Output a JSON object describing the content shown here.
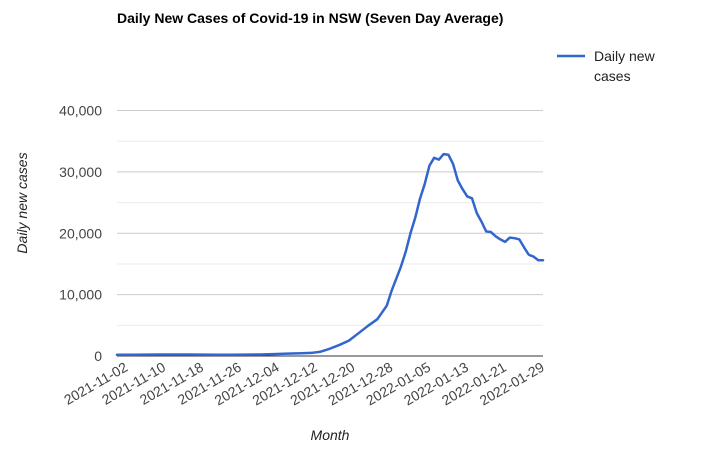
{
  "chart_data": {
    "type": "line",
    "title": "Daily New Cases of Covid-19 in NSW (Seven Day Average)",
    "xlabel": "Month",
    "ylabel": "Daily new cases",
    "ylim": [
      0,
      44000
    ],
    "y_ticks": [
      0,
      10000,
      20000,
      30000,
      40000
    ],
    "y_tick_labels": [
      "0",
      "10,000",
      "20,000",
      "30,000",
      "40,000"
    ],
    "x_tick_labels": [
      "2021-11-02",
      "2021-11-10",
      "2021-11-18",
      "2021-11-26",
      "2021-12-04",
      "2021-12-12",
      "2021-12-20",
      "2021-12-28",
      "2022-01-05",
      "2022-01-13",
      "2022-01-21",
      "2022-01-29"
    ],
    "legend_position": "right",
    "grid": true,
    "series": [
      {
        "name": "Daily new cases",
        "color": "#3366cc",
        "x": [
          "2021-11-01",
          "2021-11-04",
          "2021-11-07",
          "2021-11-10",
          "2021-11-13",
          "2021-11-16",
          "2021-11-19",
          "2021-11-22",
          "2021-11-25",
          "2021-11-28",
          "2021-12-01",
          "2021-12-04",
          "2021-12-07",
          "2021-12-10",
          "2021-12-12",
          "2021-12-14",
          "2021-12-16",
          "2021-12-18",
          "2021-12-20",
          "2021-12-22",
          "2021-12-24",
          "2021-12-26",
          "2021-12-28",
          "2021-12-29",
          "2021-12-30",
          "2021-12-31",
          "2022-01-01",
          "2022-01-02",
          "2022-01-03",
          "2022-01-04",
          "2022-01-05",
          "2022-01-06",
          "2022-01-07",
          "2022-01-08",
          "2022-01-09",
          "2022-01-10",
          "2022-01-11",
          "2022-01-12",
          "2022-01-13",
          "2022-01-14",
          "2022-01-15",
          "2022-01-16",
          "2022-01-17",
          "2022-01-18",
          "2022-01-19",
          "2022-01-20",
          "2022-01-21",
          "2022-01-22",
          "2022-01-23",
          "2022-01-24",
          "2022-01-25",
          "2022-01-26",
          "2022-01-27",
          "2022-01-28",
          "2022-01-29",
          "2022-01-30"
        ],
        "values": [
          200,
          200,
          220,
          250,
          250,
          240,
          220,
          200,
          200,
          220,
          250,
          300,
          380,
          450,
          500,
          700,
          1200,
          1800,
          2500,
          3700,
          4900,
          6000,
          8200,
          10600,
          12600,
          14600,
          17000,
          20000,
          22500,
          25600,
          28000,
          31000,
          32300,
          32000,
          32900,
          32800,
          31300,
          28600,
          27200,
          26000,
          25700,
          23300,
          21900,
          20300,
          20200,
          19500,
          19000,
          18600,
          19300,
          19200,
          19000,
          17700,
          16500,
          16200,
          15600,
          15600
        ]
      }
    ]
  }
}
